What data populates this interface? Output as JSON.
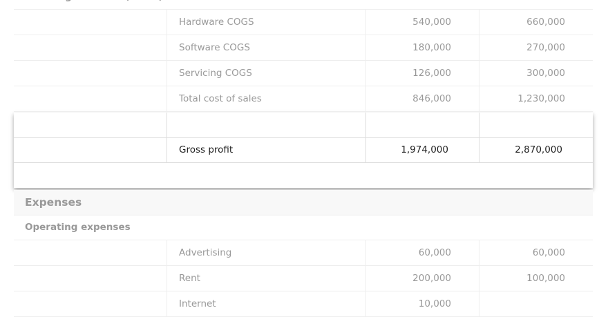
{
  "cogs": {
    "title": "Cost of goods sold (COGS)",
    "rows": [
      {
        "name": "Hardware COGS",
        "values": [
          "540,000",
          "660,000"
        ]
      },
      {
        "name": "Software COGS",
        "values": [
          "180,000",
          "270,000"
        ]
      },
      {
        "name": "Servicing COGS",
        "values": [
          "126,000",
          "300,000"
        ]
      },
      {
        "name": "Total cost of sales",
        "values": [
          "846,000",
          "1,230,000"
        ]
      }
    ]
  },
  "gross_profit": {
    "name": "Gross profit",
    "values": [
      "1,974,000",
      "2,870,000"
    ]
  },
  "expenses": {
    "title": "Expenses",
    "subtitle": "Operating expenses",
    "rows": [
      {
        "name": "Advertising",
        "values": [
          "60,000",
          "60,000"
        ]
      },
      {
        "name": "Rent",
        "values": [
          "200,000",
          "100,000"
        ]
      },
      {
        "name": "Internet",
        "values": [
          "10,000"
        ]
      }
    ]
  }
}
